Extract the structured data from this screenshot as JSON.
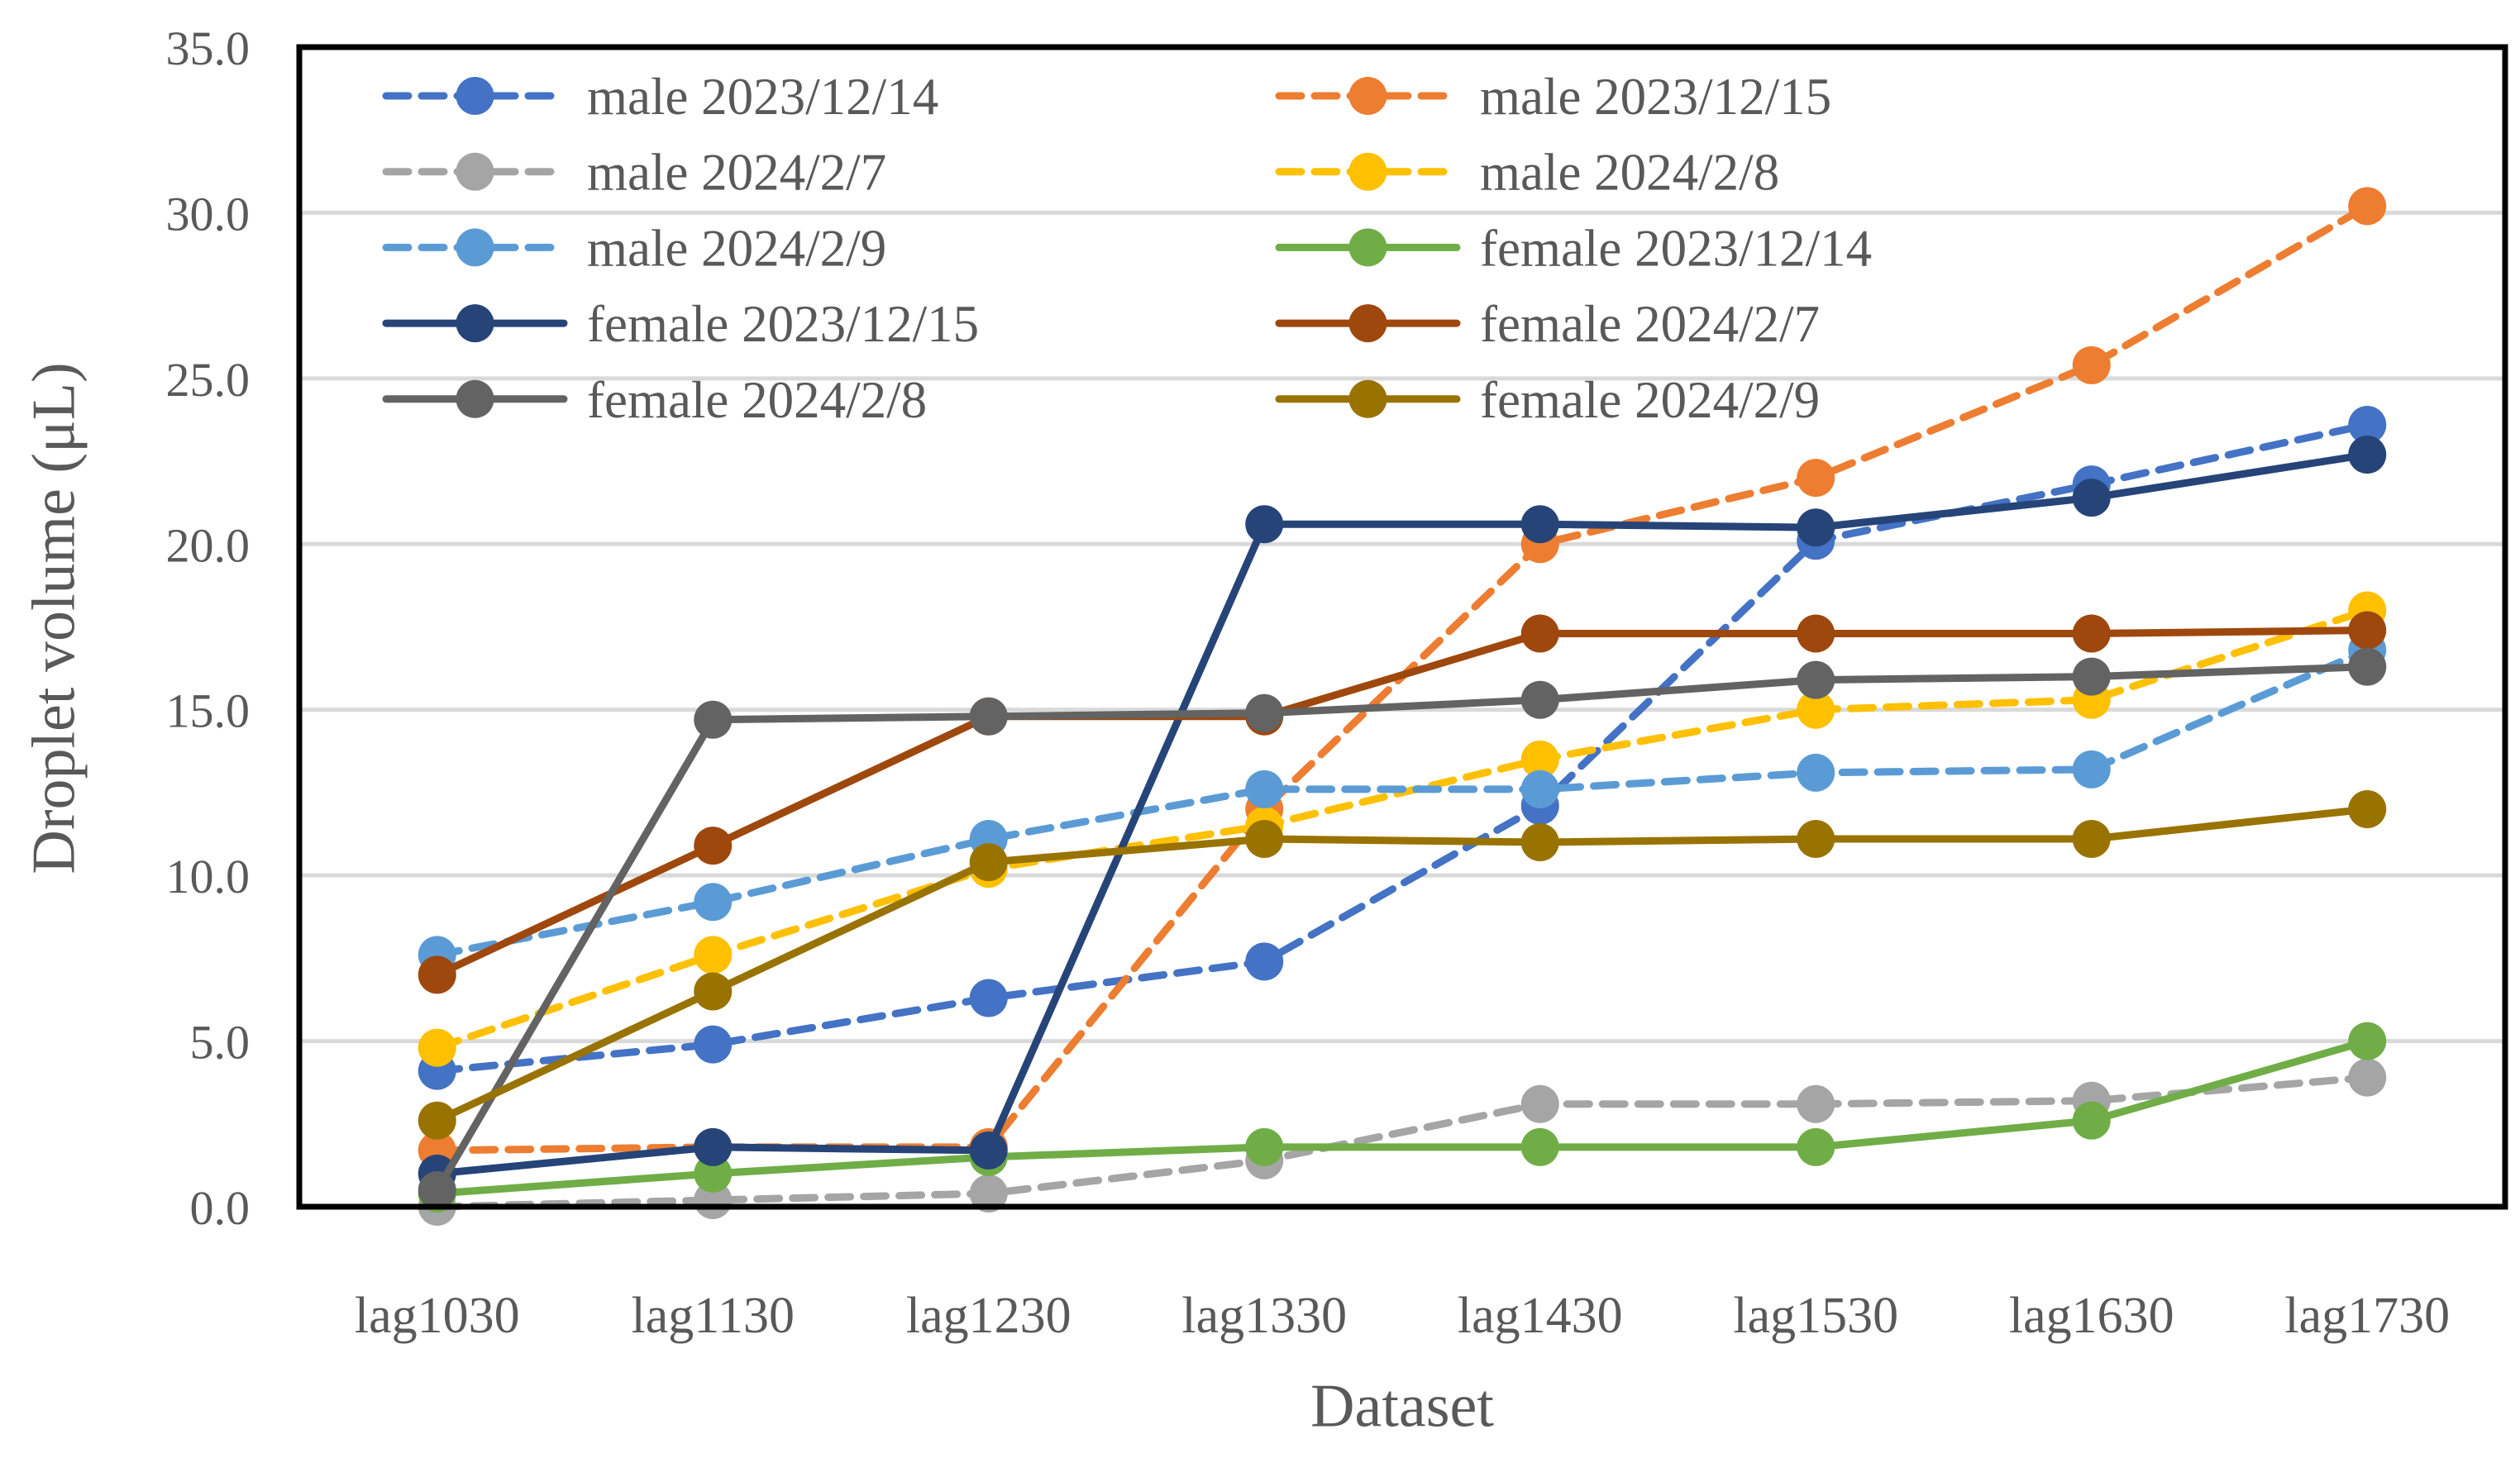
{
  "chart_data": {
    "type": "line",
    "title": "",
    "xlabel": "Dataset",
    "ylabel": "Droplet volume (μL)",
    "ylim": [
      0,
      35
    ],
    "ytick_step": 5,
    "ytick_labels": [
      "0.0",
      "5.0",
      "10.0",
      "15.0",
      "20.0",
      "25.0",
      "30.0",
      "35.0"
    ],
    "categories": [
      "lag1030",
      "lag1130",
      "lag1230",
      "lag1330",
      "lag1430",
      "lag1530",
      "lag1630",
      "lag1730"
    ],
    "grid": "horizontal",
    "legend_position": "inside-top, two columns, row-major",
    "text_color": "#595959",
    "grid_color": "#D9D9D9",
    "border_color": "#000000",
    "series": [
      {
        "name": "male 2023/12/14",
        "color": "#4472C4",
        "style": "dashed",
        "values": [
          4.1,
          4.9,
          6.3,
          7.4,
          12.1,
          20.1,
          21.8,
          23.6
        ]
      },
      {
        "name": "male 2023/12/15",
        "color": "#ED7D31",
        "style": "dashed",
        "values": [
          1.7,
          1.8,
          1.8,
          12.0,
          20.0,
          22.0,
          25.4,
          30.2
        ]
      },
      {
        "name": "male 2024/2/7",
        "color": "#A5A5A5",
        "style": "dashed",
        "values": [
          0.0,
          0.2,
          0.4,
          1.4,
          3.1,
          3.1,
          3.2,
          3.9
        ]
      },
      {
        "name": "male 2024/2/8",
        "color": "#FFC000",
        "style": "dashed",
        "values": [
          4.8,
          7.6,
          10.2,
          11.5,
          13.5,
          15.0,
          15.3,
          18.0
        ]
      },
      {
        "name": "male 2024/2/9",
        "color": "#5B9BD5",
        "style": "dashed",
        "values": [
          7.6,
          9.2,
          11.1,
          12.6,
          12.6,
          13.1,
          13.2,
          16.8
        ]
      },
      {
        "name": "female 2023/12/14",
        "color": "#70AD47",
        "style": "solid",
        "values": [
          0.4,
          1.0,
          1.5,
          1.8,
          1.8,
          1.8,
          2.6,
          5.0
        ]
      },
      {
        "name": "female 2023/12/15",
        "color": "#264478",
        "style": "solid",
        "values": [
          1.0,
          1.8,
          1.7,
          20.6,
          20.6,
          20.5,
          21.4,
          22.7
        ]
      },
      {
        "name": "female 2024/2/7",
        "color": "#9E480E",
        "style": "solid",
        "values": [
          7.0,
          10.9,
          14.8,
          14.8,
          17.3,
          17.3,
          17.3,
          17.4
        ]
      },
      {
        "name": "female 2024/2/8",
        "color": "#636363",
        "style": "solid",
        "values": [
          0.5,
          14.7,
          14.8,
          14.9,
          15.3,
          15.9,
          16.0,
          16.3
        ]
      },
      {
        "name": "female 2024/2/9",
        "color": "#997300",
        "style": "solid",
        "values": [
          2.6,
          6.5,
          10.4,
          11.1,
          11.0,
          11.1,
          11.1,
          12.0
        ]
      }
    ]
  }
}
